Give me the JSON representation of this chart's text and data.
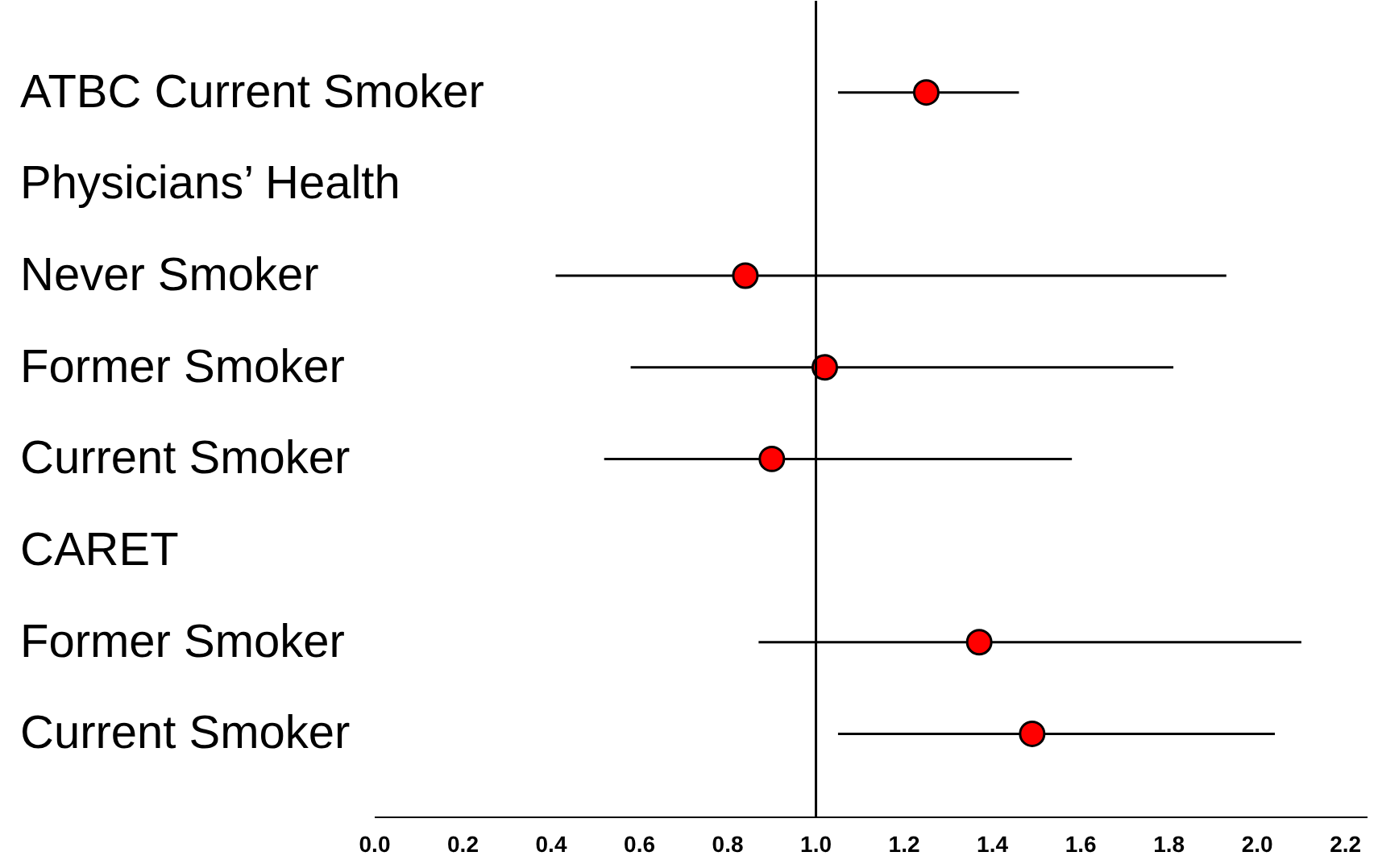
{
  "chart_data": {
    "type": "scatter",
    "orientation": "horizontal",
    "categories": [
      "ATBC Current Smoker",
      "Physicians’ Health",
      "Never Smoker",
      "Former Smoker",
      "Current Smoker",
      "CARET",
      "Former Smoker",
      "Current Smoker"
    ],
    "values": [
      1.25,
      null,
      0.84,
      1.02,
      0.9,
      null,
      1.37,
      1.49
    ],
    "errors": [
      [
        1.05,
        1.46
      ],
      null,
      [
        0.41,
        1.93
      ],
      [
        0.58,
        1.81
      ],
      [
        0.52,
        1.58
      ],
      null,
      [
        0.87,
        2.1
      ],
      [
        1.05,
        2.04
      ]
    ],
    "color": "#ff0000",
    "marker": "circle",
    "grid": false,
    "xlim": [
      0,
      2.25
    ],
    "xticks": [
      {
        "value": 0,
        "label": "0.0"
      },
      0.2,
      0.4,
      0.6,
      0.8,
      {
        "value": 1,
        "label": "1.0"
      },
      1.2,
      1.4,
      1.6,
      1.8,
      {
        "value": 2,
        "label": "2.0"
      },
      2.2
    ],
    "ref_lines": [
      {
        "axis": "x",
        "value": 1,
        "label": null,
        "color": "#000000"
      }
    ]
  }
}
